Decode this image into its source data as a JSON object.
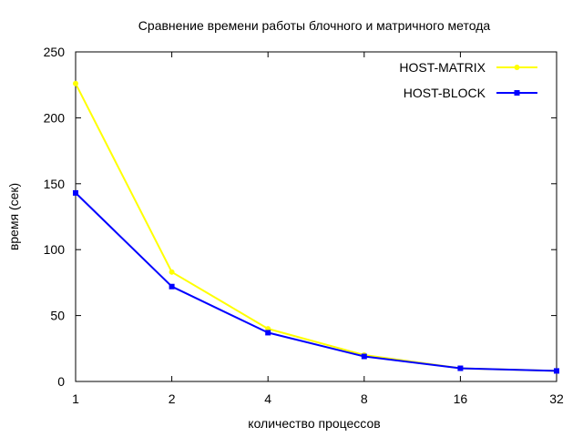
{
  "chart_data": {
    "type": "line",
    "title": "Сравнение времени работы блочного и матричного метода",
    "xlabel": "количество процессов",
    "ylabel": "время (сек)",
    "x_scale": "log2",
    "xlim": [
      1,
      32
    ],
    "ylim": [
      0,
      250
    ],
    "xticks": [
      "1",
      "2",
      "4",
      "8",
      "16",
      "32"
    ],
    "yticks": [
      "0",
      "50",
      "100",
      "150",
      "200",
      "250"
    ],
    "grid": false,
    "legend_position": "top-right",
    "x": [
      1,
      2,
      4,
      8,
      16,
      32
    ],
    "series": [
      {
        "name": "HOST-MATRIX",
        "color": "#ffff00",
        "marker": "circle",
        "values": [
          226,
          83,
          40,
          20,
          10,
          8
        ]
      },
      {
        "name": "HOST-BLOCK",
        "color": "#0000ff",
        "marker": "square",
        "values": [
          143,
          72,
          37,
          19,
          10,
          8
        ]
      }
    ]
  }
}
